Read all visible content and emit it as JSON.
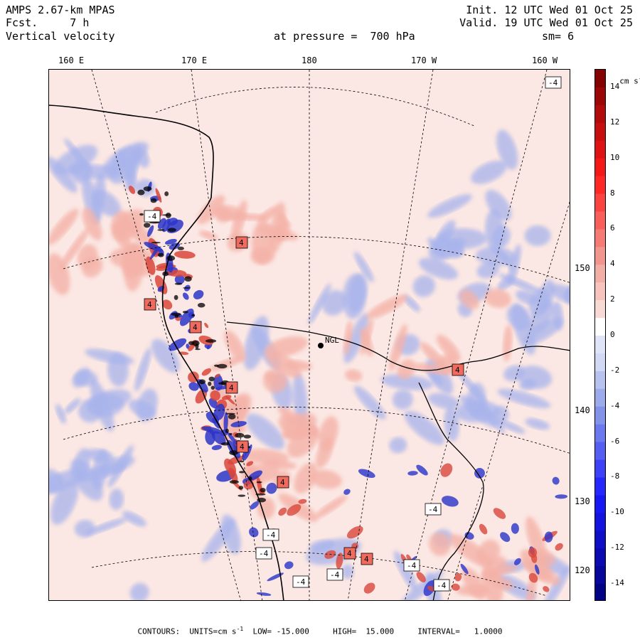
{
  "header": {
    "model": "AMPS 2.67-km MPAS",
    "forecast": "Fcst.     7 h",
    "field": "Vertical velocity",
    "init": "Init. 12 UTC Wed 01 Oct 25",
    "valid": "Valid. 19 UTC Wed 01 Oct 25",
    "pressure": "at pressure =  700 hPa",
    "smooth": "sm= 6"
  },
  "lon_labels": [
    "160 E",
    "170 E",
    "180",
    "170 W",
    "160 W"
  ],
  "lat_labels": [
    "150 W",
    "140 W",
    "130 W",
    "120 W"
  ],
  "station_label": "NGL",
  "colorbar": {
    "unit": "cm s",
    "unit_exp": "-1",
    "levels": [
      -15,
      -14,
      -13,
      -12,
      -11,
      -10,
      -9,
      -8,
      -7,
      -6,
      -5,
      -4,
      -3,
      -2,
      -1,
      0,
      1,
      2,
      3,
      4,
      5,
      6,
      7,
      8,
      9,
      10,
      11,
      12,
      13,
      14,
      15
    ],
    "tick_labels": [
      "14",
      "12",
      "10",
      "8",
      "6",
      "4",
      "2",
      "0",
      "-2",
      "-4",
      "-6",
      "-8",
      "-10",
      "-12",
      "-14"
    ],
    "colors": {
      "neg_max": "#00007a",
      "neg_mid": "#1a1aff",
      "neg_low": "#8fa0e6",
      "neg_faint": "#dfe4f7",
      "zero": "#ffffff",
      "pos_faint": "#fbe3df",
      "pos_low": "#f0a49a",
      "pos_mid": "#ff1a1a",
      "pos_max": "#7a0000"
    }
  },
  "map_colors": {
    "background": "#fbe7e3",
    "positive": "#f4b2a8",
    "positive_strong": "#d9473b",
    "negative": "#a8b4ec",
    "negative_strong": "#2b35c9",
    "coast": "#000000",
    "grid": "#000000"
  },
  "contour_labels": [
    "4",
    "-4"
  ],
  "footer": {
    "prefix": "CONTOURS:  UNITS=cm s",
    "unit_exp": "-1",
    "low": "LOW= -15.000",
    "high": "HIGH=  15.000",
    "interval": "INTERVAL=   1.0000"
  }
}
